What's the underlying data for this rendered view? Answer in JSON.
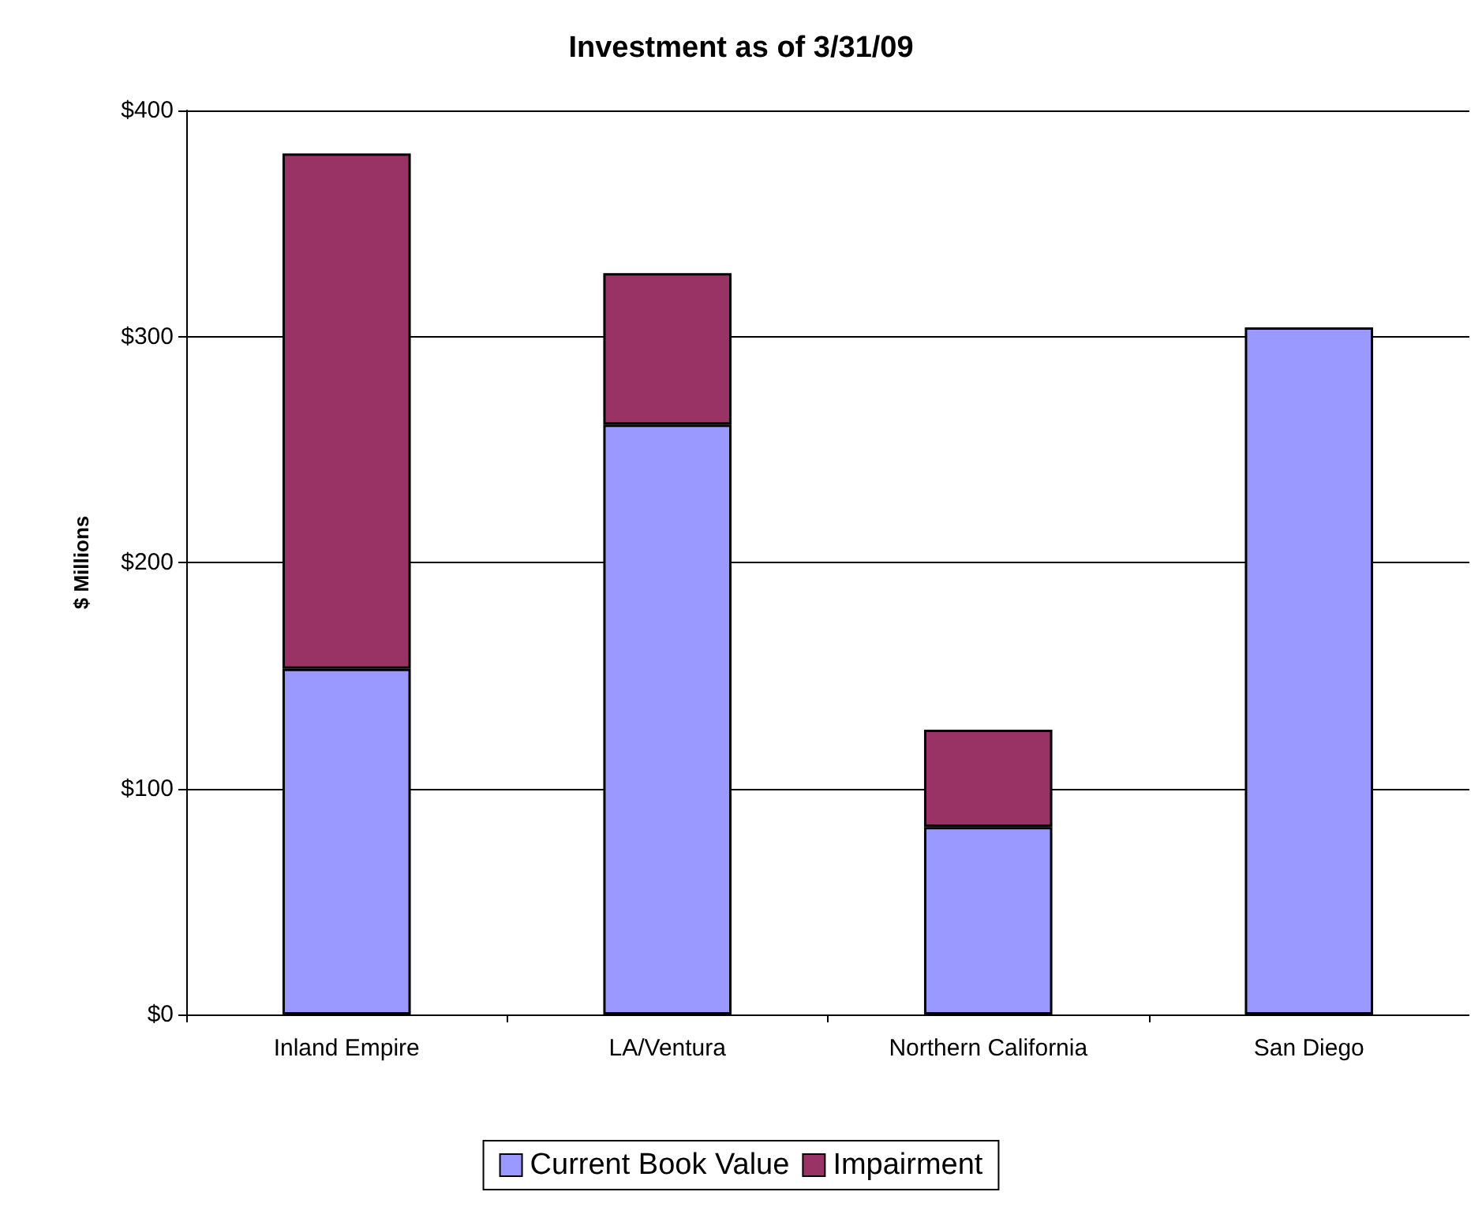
{
  "chart_data": {
    "type": "bar",
    "title": "Investment as of 3/31/09",
    "ylabel": "$ Millions",
    "categories": [
      "Inland Empire",
      "LA/Ventura",
      "Northern California",
      "San Diego"
    ],
    "stacked": true,
    "series": [
      {
        "name": "Current Book Value",
        "color": "#9999ff",
        "values": [
          153,
          261,
          83,
          304
        ]
      },
      {
        "name": "Impairment",
        "color": "#993366",
        "values": [
          228,
          67,
          43,
          0
        ]
      }
    ],
    "ylim": [
      0,
      400
    ],
    "yticks": [
      {
        "value": 0,
        "label": "$0"
      },
      {
        "value": 100,
        "label": "$100"
      },
      {
        "value": 200,
        "label": "$200"
      },
      {
        "value": 300,
        "label": "$300"
      },
      {
        "value": 400,
        "label": "$400"
      }
    ],
    "grid": "y",
    "legend": "bottom"
  }
}
